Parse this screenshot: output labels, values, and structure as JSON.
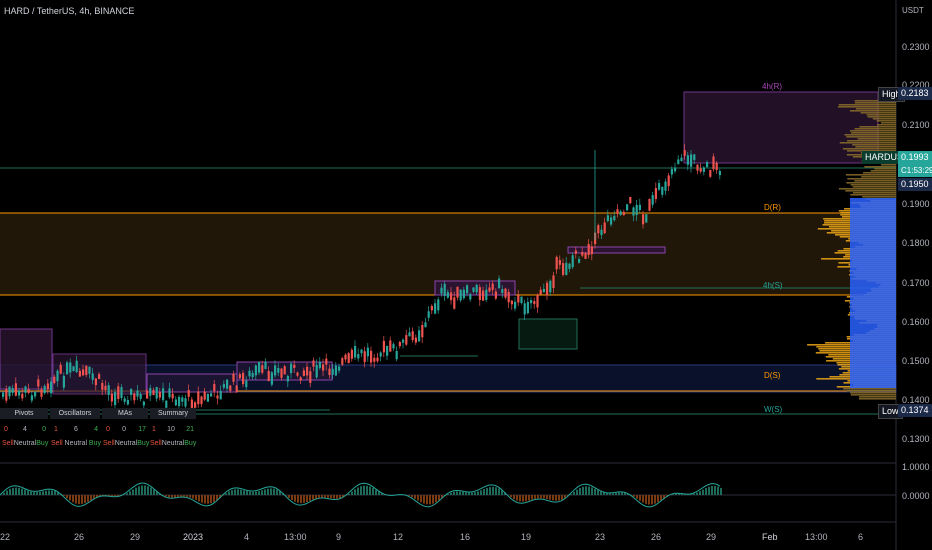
{
  "header": {
    "title": "HARD / TetherUS, 4h, BINANCE",
    "currency": "USDT"
  },
  "price_axis": {
    "ticks": [
      "0.2300",
      "0.2200",
      "0.2100",
      "0.1900",
      "0.1800",
      "0.1700",
      "0.1600",
      "0.1500",
      "0.1400",
      "0.1300"
    ],
    "high_label": "High",
    "high_value": "0.2183",
    "symbol_label": "HARDUSDT",
    "last_price": "0.1993",
    "countdown": "C1:53:29",
    "alt_price": "0.1950",
    "low_label": "Low",
    "low_value": "0.1374"
  },
  "pivot_labels": {
    "r4": "4h(R)",
    "dr": "D(R)",
    "s4": "4h(S)",
    "ds": "D(S)",
    "ws": "W(S)"
  },
  "osc_axis": {
    "ticks": [
      "1.0000",
      "0.0000"
    ]
  },
  "time_axis": {
    "ticks": [
      "22",
      "26",
      "29",
      "2023",
      "4",
      "13:00",
      "9",
      "12",
      "16",
      "19",
      "23",
      "26",
      "29",
      "Feb",
      "13:00",
      "6"
    ]
  },
  "summary_table": {
    "groups": [
      {
        "title": "Pivots",
        "values": [
          "0",
          "4",
          "0"
        ]
      },
      {
        "title": "Oscillators",
        "values": [
          "1",
          "6",
          "4"
        ]
      },
      {
        "title": "MAs",
        "values": [
          "0",
          "0",
          "17"
        ]
      },
      {
        "title": "Summary",
        "values": [
          "1",
          "10",
          "21"
        ]
      }
    ],
    "labels": [
      "Sell",
      "Neutral",
      "Buy"
    ]
  },
  "colors": {
    "up": "#26a69a",
    "down": "#ef5350",
    "purple": "#9c27b0",
    "orange": "#ff9800",
    "blue": "#2962ff"
  }
}
